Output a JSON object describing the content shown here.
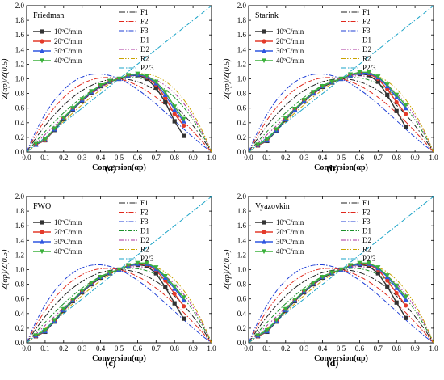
{
  "chart_data": [
    {
      "type": "line",
      "panel_tag": "(a)",
      "method_label": "Friedman",
      "xlabel": "Conversion(αp)",
      "ylabel": "Z(αp)/Z(0.5)",
      "xlim": [
        0.0,
        1.0
      ],
      "ylim": [
        0.0,
        2.0
      ],
      "xticks": [
        "0.0",
        "0.1",
        "0.2",
        "0.3",
        "0.4",
        "0.5",
        "0.6",
        "0.7",
        "0.8",
        "0.9",
        "1.0"
      ],
      "yticks": [
        "0.0",
        "0.2",
        "0.4",
        "0.6",
        "0.8",
        "1.0",
        "1.2",
        "1.4",
        "1.6",
        "1.8",
        "2.0"
      ],
      "grid": false,
      "legend_position": "top-right",
      "x": [
        0.05,
        0.1,
        0.15,
        0.2,
        0.25,
        0.3,
        0.35,
        0.4,
        0.45,
        0.5,
        0.55,
        0.6,
        0.65,
        0.7,
        0.75,
        0.8,
        0.85
      ],
      "series": [
        {
          "name": "10ºC/min",
          "values": [
            0.1,
            0.16,
            0.3,
            0.45,
            0.58,
            0.7,
            0.81,
            0.9,
            0.96,
            1.0,
            1.04,
            1.05,
            1.0,
            0.88,
            0.68,
            0.42,
            0.22
          ]
        },
        {
          "name": "20ºC/min",
          "values": [
            0.1,
            0.16,
            0.31,
            0.46,
            0.59,
            0.71,
            0.82,
            0.91,
            0.97,
            1.0,
            1.04,
            1.06,
            1.02,
            0.92,
            0.74,
            0.52,
            0.36
          ]
        },
        {
          "name": "30ºC/min",
          "values": [
            0.1,
            0.17,
            0.31,
            0.46,
            0.59,
            0.71,
            0.82,
            0.91,
            0.97,
            1.0,
            1.04,
            1.06,
            1.03,
            0.94,
            0.78,
            0.58,
            0.42
          ]
        },
        {
          "name": "40ºC/min",
          "values": [
            0.11,
            0.17,
            0.32,
            0.47,
            0.6,
            0.72,
            0.83,
            0.91,
            0.97,
            1.0,
            1.05,
            1.07,
            1.04,
            0.96,
            0.82,
            0.62,
            0.45
          ]
        }
      ]
    },
    {
      "type": "line",
      "panel_tag": "(b)",
      "method_label": "Starink",
      "xlabel": "Conversion(αp)",
      "ylabel": "Z(αp)/Z(0.5)",
      "xlim": [
        0.0,
        1.0
      ],
      "ylim": [
        0.0,
        2.0
      ],
      "xticks": [
        "0.0",
        "0.1",
        "0.2",
        "0.3",
        "0.4",
        "0.5",
        "0.6",
        "0.7",
        "0.8",
        "0.9",
        "1.0"
      ],
      "yticks": [
        "0.0",
        "0.2",
        "0.4",
        "0.6",
        "0.8",
        "1.0",
        "1.2",
        "1.4",
        "1.6",
        "1.8",
        "2.0"
      ],
      "grid": false,
      "legend_position": "top-right",
      "x": [
        0.05,
        0.1,
        0.15,
        0.2,
        0.25,
        0.3,
        0.35,
        0.4,
        0.45,
        0.5,
        0.55,
        0.6,
        0.65,
        0.7,
        0.75,
        0.8,
        0.85
      ],
      "series": [
        {
          "name": "10ºC/min",
          "values": [
            0.09,
            0.15,
            0.29,
            0.44,
            0.57,
            0.69,
            0.8,
            0.89,
            0.95,
            1.0,
            1.05,
            1.07,
            1.05,
            0.96,
            0.78,
            0.56,
            0.34
          ]
        },
        {
          "name": "20ºC/min",
          "values": [
            0.09,
            0.16,
            0.3,
            0.45,
            0.58,
            0.7,
            0.81,
            0.9,
            0.96,
            1.0,
            1.05,
            1.08,
            1.07,
            1.0,
            0.86,
            0.68,
            0.52
          ]
        },
        {
          "name": "30ºC/min",
          "values": [
            0.1,
            0.16,
            0.3,
            0.45,
            0.58,
            0.7,
            0.81,
            0.9,
            0.96,
            1.0,
            1.05,
            1.08,
            1.08,
            1.02,
            0.9,
            0.75,
            0.6
          ]
        },
        {
          "name": "40ºC/min",
          "values": [
            0.1,
            0.17,
            0.31,
            0.46,
            0.59,
            0.71,
            0.82,
            0.9,
            0.96,
            1.0,
            1.06,
            1.09,
            1.09,
            1.03,
            0.92,
            0.78,
            0.64
          ]
        }
      ]
    },
    {
      "type": "line",
      "panel_tag": "(c)",
      "method_label": "FWO",
      "xlabel": "Conversion(αp)",
      "ylabel": "Z(αp)/Z(0.5)",
      "xlim": [
        0.0,
        1.0
      ],
      "ylim": [
        0.0,
        2.0
      ],
      "xticks": [
        "0.0",
        "0.1",
        "0.2",
        "0.3",
        "0.4",
        "0.5",
        "0.6",
        "0.7",
        "0.8",
        "0.9",
        "1.0"
      ],
      "yticks": [
        "0.0",
        "0.2",
        "0.4",
        "0.6",
        "0.8",
        "1.0",
        "1.2",
        "1.4",
        "1.6",
        "1.8",
        "2.0"
      ],
      "grid": false,
      "legend_position": "top-right",
      "x": [
        0.05,
        0.1,
        0.15,
        0.2,
        0.25,
        0.3,
        0.35,
        0.4,
        0.45,
        0.5,
        0.55,
        0.6,
        0.65,
        0.7,
        0.75,
        0.8,
        0.85
      ],
      "series": [
        {
          "name": "10ºC/min",
          "values": [
            0.09,
            0.15,
            0.29,
            0.44,
            0.57,
            0.69,
            0.8,
            0.89,
            0.95,
            1.0,
            1.05,
            1.07,
            1.05,
            0.95,
            0.76,
            0.54,
            0.33
          ]
        },
        {
          "name": "20ºC/min",
          "values": [
            0.09,
            0.16,
            0.3,
            0.45,
            0.58,
            0.7,
            0.81,
            0.9,
            0.96,
            1.0,
            1.05,
            1.08,
            1.07,
            0.99,
            0.85,
            0.67,
            0.5
          ]
        },
        {
          "name": "30ºC/min",
          "values": [
            0.1,
            0.16,
            0.3,
            0.45,
            0.58,
            0.7,
            0.81,
            0.9,
            0.96,
            1.0,
            1.05,
            1.08,
            1.08,
            1.01,
            0.89,
            0.74,
            0.58
          ]
        },
        {
          "name": "40ºC/min",
          "values": [
            0.1,
            0.17,
            0.31,
            0.46,
            0.59,
            0.71,
            0.82,
            0.9,
            0.96,
            1.0,
            1.06,
            1.09,
            1.09,
            1.03,
            0.91,
            0.77,
            0.62
          ]
        }
      ]
    },
    {
      "type": "line",
      "panel_tag": "(d)",
      "method_label": "Vyazovkin",
      "xlabel": "Conversion(αp)",
      "ylabel": "Z(αp)/Z(0.5)",
      "xlim": [
        0.0,
        1.0
      ],
      "ylim": [
        0.0,
        2.0
      ],
      "xticks": [
        "0.0",
        "0.1",
        "0.2",
        "0.3",
        "0.4",
        "0.5",
        "0.6",
        "0.7",
        "0.8",
        "0.9",
        "1.0"
      ],
      "yticks": [
        "0.0",
        "0.2",
        "0.4",
        "0.6",
        "0.8",
        "1.0",
        "1.2",
        "1.4",
        "1.6",
        "1.8",
        "2.0"
      ],
      "grid": false,
      "legend_position": "top-right",
      "x": [
        0.05,
        0.1,
        0.15,
        0.2,
        0.25,
        0.3,
        0.35,
        0.4,
        0.45,
        0.5,
        0.55,
        0.6,
        0.65,
        0.7,
        0.75,
        0.8,
        0.85
      ],
      "series": [
        {
          "name": "10ºC/min",
          "values": [
            0.09,
            0.15,
            0.29,
            0.44,
            0.57,
            0.69,
            0.8,
            0.89,
            0.95,
            1.0,
            1.05,
            1.07,
            1.05,
            0.95,
            0.77,
            0.55,
            0.34
          ]
        },
        {
          "name": "20ºC/min",
          "values": [
            0.09,
            0.16,
            0.3,
            0.45,
            0.58,
            0.7,
            0.81,
            0.9,
            0.96,
            1.0,
            1.05,
            1.08,
            1.07,
            1.0,
            0.85,
            0.68,
            0.51
          ]
        },
        {
          "name": "30ºC/min",
          "values": [
            0.1,
            0.16,
            0.3,
            0.45,
            0.58,
            0.7,
            0.81,
            0.9,
            0.96,
            1.0,
            1.05,
            1.08,
            1.08,
            1.02,
            0.9,
            0.75,
            0.59
          ]
        },
        {
          "name": "40ºC/min",
          "values": [
            0.1,
            0.17,
            0.31,
            0.46,
            0.59,
            0.71,
            0.82,
            0.9,
            0.96,
            1.0,
            1.06,
            1.09,
            1.09,
            1.03,
            0.92,
            0.78,
            0.63
          ]
        }
      ]
    }
  ],
  "reference_models": [
    "F1",
    "F2",
    "F3",
    "D1",
    "D2",
    "R2",
    "P2/3"
  ],
  "style": {
    "model_colors": {
      "F1": "#222222",
      "F2": "#e0281c",
      "F3": "#1f3fd6",
      "D1": "#1b8f2a",
      "D2": "#a8329d",
      "R2": "#c9a300",
      "P2/3": "#1aa3c7"
    },
    "series_colors": [
      "#333333",
      "#e33a2a",
      "#2f56e0",
      "#3bb03b"
    ],
    "series_markers": [
      "square",
      "circle",
      "triangle-up",
      "triangle-down"
    ]
  }
}
